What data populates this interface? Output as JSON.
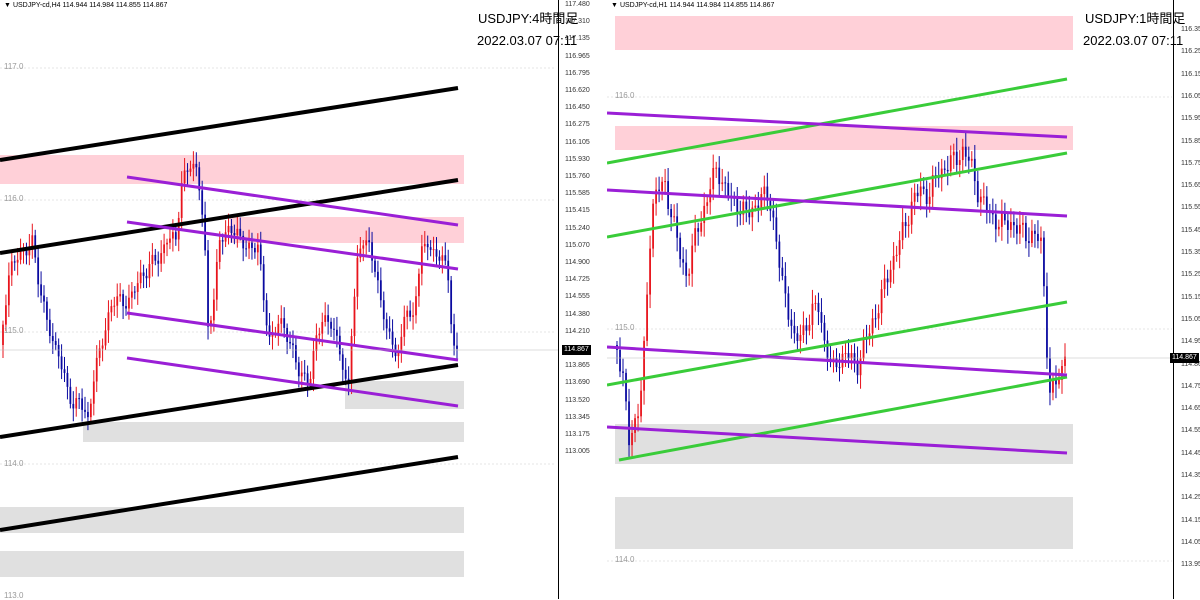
{
  "chart_data": [
    {
      "type": "candlestick",
      "symbol_info": "USDJPY-cd,H4  114.944 114.984 114.855 114.867",
      "title": "USDJPY:4時間足",
      "timestamp": "2022.03.07 07:11",
      "price_axis_ticks": [
        "117.480",
        "117.310",
        "117.135",
        "116.965",
        "116.795",
        "116.620",
        "116.450",
        "116.275",
        "116.105",
        "115.930",
        "115.760",
        "115.585",
        "115.415",
        "115.240",
        "115.070",
        "114.900",
        "114.725",
        "114.555",
        "114.380",
        "114.210",
        "114.035",
        "113.865",
        "113.690",
        "113.520",
        "113.345",
        "113.175",
        "113.005"
      ],
      "level_labels": [
        "117.0",
        "116.0",
        "115.0",
        "114.0",
        "113.0"
      ],
      "current_price": "114.867",
      "ylim": [
        113.005,
        117.48
      ],
      "colors": {
        "bull": "#e8141c",
        "bear": "#0a0aa0",
        "zone_supply": "#ffd0d8",
        "zone_demand": "#e0e0e0",
        "channel_major": "#000000",
        "channel_minor": "#9a1fd6"
      }
    },
    {
      "type": "candlestick",
      "symbol_info": "USDJPY-cd,H1  114.944 114.984 114.855 114.867",
      "title": "USDJPY:1時間足",
      "timestamp": "2022.03.07 07:11",
      "price_axis_ticks": [
        "116.350",
        "116.250",
        "116.150",
        "116.050",
        "115.950",
        "115.850",
        "115.750",
        "115.650",
        "115.550",
        "115.450",
        "115.350",
        "115.250",
        "115.150",
        "115.050",
        "114.950",
        "114.867",
        "114.750",
        "114.650",
        "114.550",
        "114.450",
        "114.350",
        "114.250",
        "114.150",
        "114.050",
        "113.950"
      ],
      "level_labels": [
        "116.0",
        "115.0",
        "114.0"
      ],
      "current_price": "114.867",
      "ylim": [
        113.9,
        116.4
      ],
      "colors": {
        "bull": "#e8141c",
        "bear": "#0a0aa0",
        "zone_supply": "#ffd0d8",
        "zone_demand": "#e0e0e0",
        "channel_green": "#39cc39",
        "channel_purple": "#9a1fd6"
      }
    }
  ]
}
